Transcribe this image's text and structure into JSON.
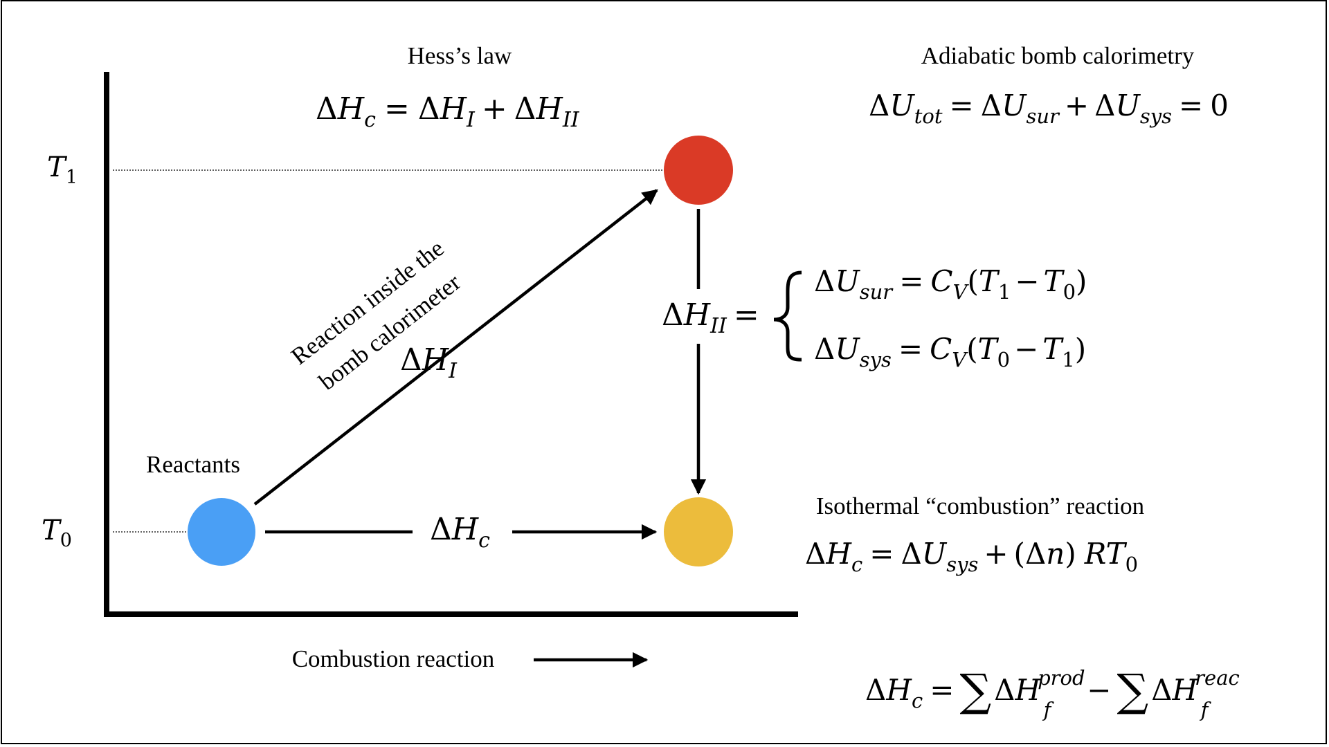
{
  "labels": {
    "hess_title": "Hess’s law",
    "bomb_title": "Adiabatic bomb calorimetry",
    "isothermal_title": "Isothermal “combustion” reaction",
    "reactants": "Reactants",
    "x_axis": "Combustion reaction",
    "path_line1": "Reaction inside the",
    "path_line2": "bomb calorimeter"
  },
  "axis": {
    "t1_sym": "T",
    "t1_sub": "1",
    "t0_sym": "T",
    "t0_sub": "0"
  },
  "symbols": {
    "delta": "Δ",
    "H": "H",
    "U": "U",
    "C": "C",
    "T": "T",
    "R": "R",
    "n": "n",
    "sub_c": "c",
    "sub_I": "I",
    "sub_II": "II",
    "sub_tot": "tot",
    "sub_sur": "sur",
    "sub_sys": "sys",
    "sub_V": "V",
    "sub_0": "0",
    "sub_1": "1",
    "sub_f": "f",
    "sup_prod": "prod",
    "sup_reac": "reac",
    "plus": "+",
    "minus": "−",
    "equals": "=",
    "zero": "0",
    "lparen": "(",
    "rparen": ")",
    "sum": "∑"
  },
  "colors": {
    "reactants": "#4a9ff5",
    "intermediate": "#da3a26",
    "products": "#ecbc3c"
  }
}
